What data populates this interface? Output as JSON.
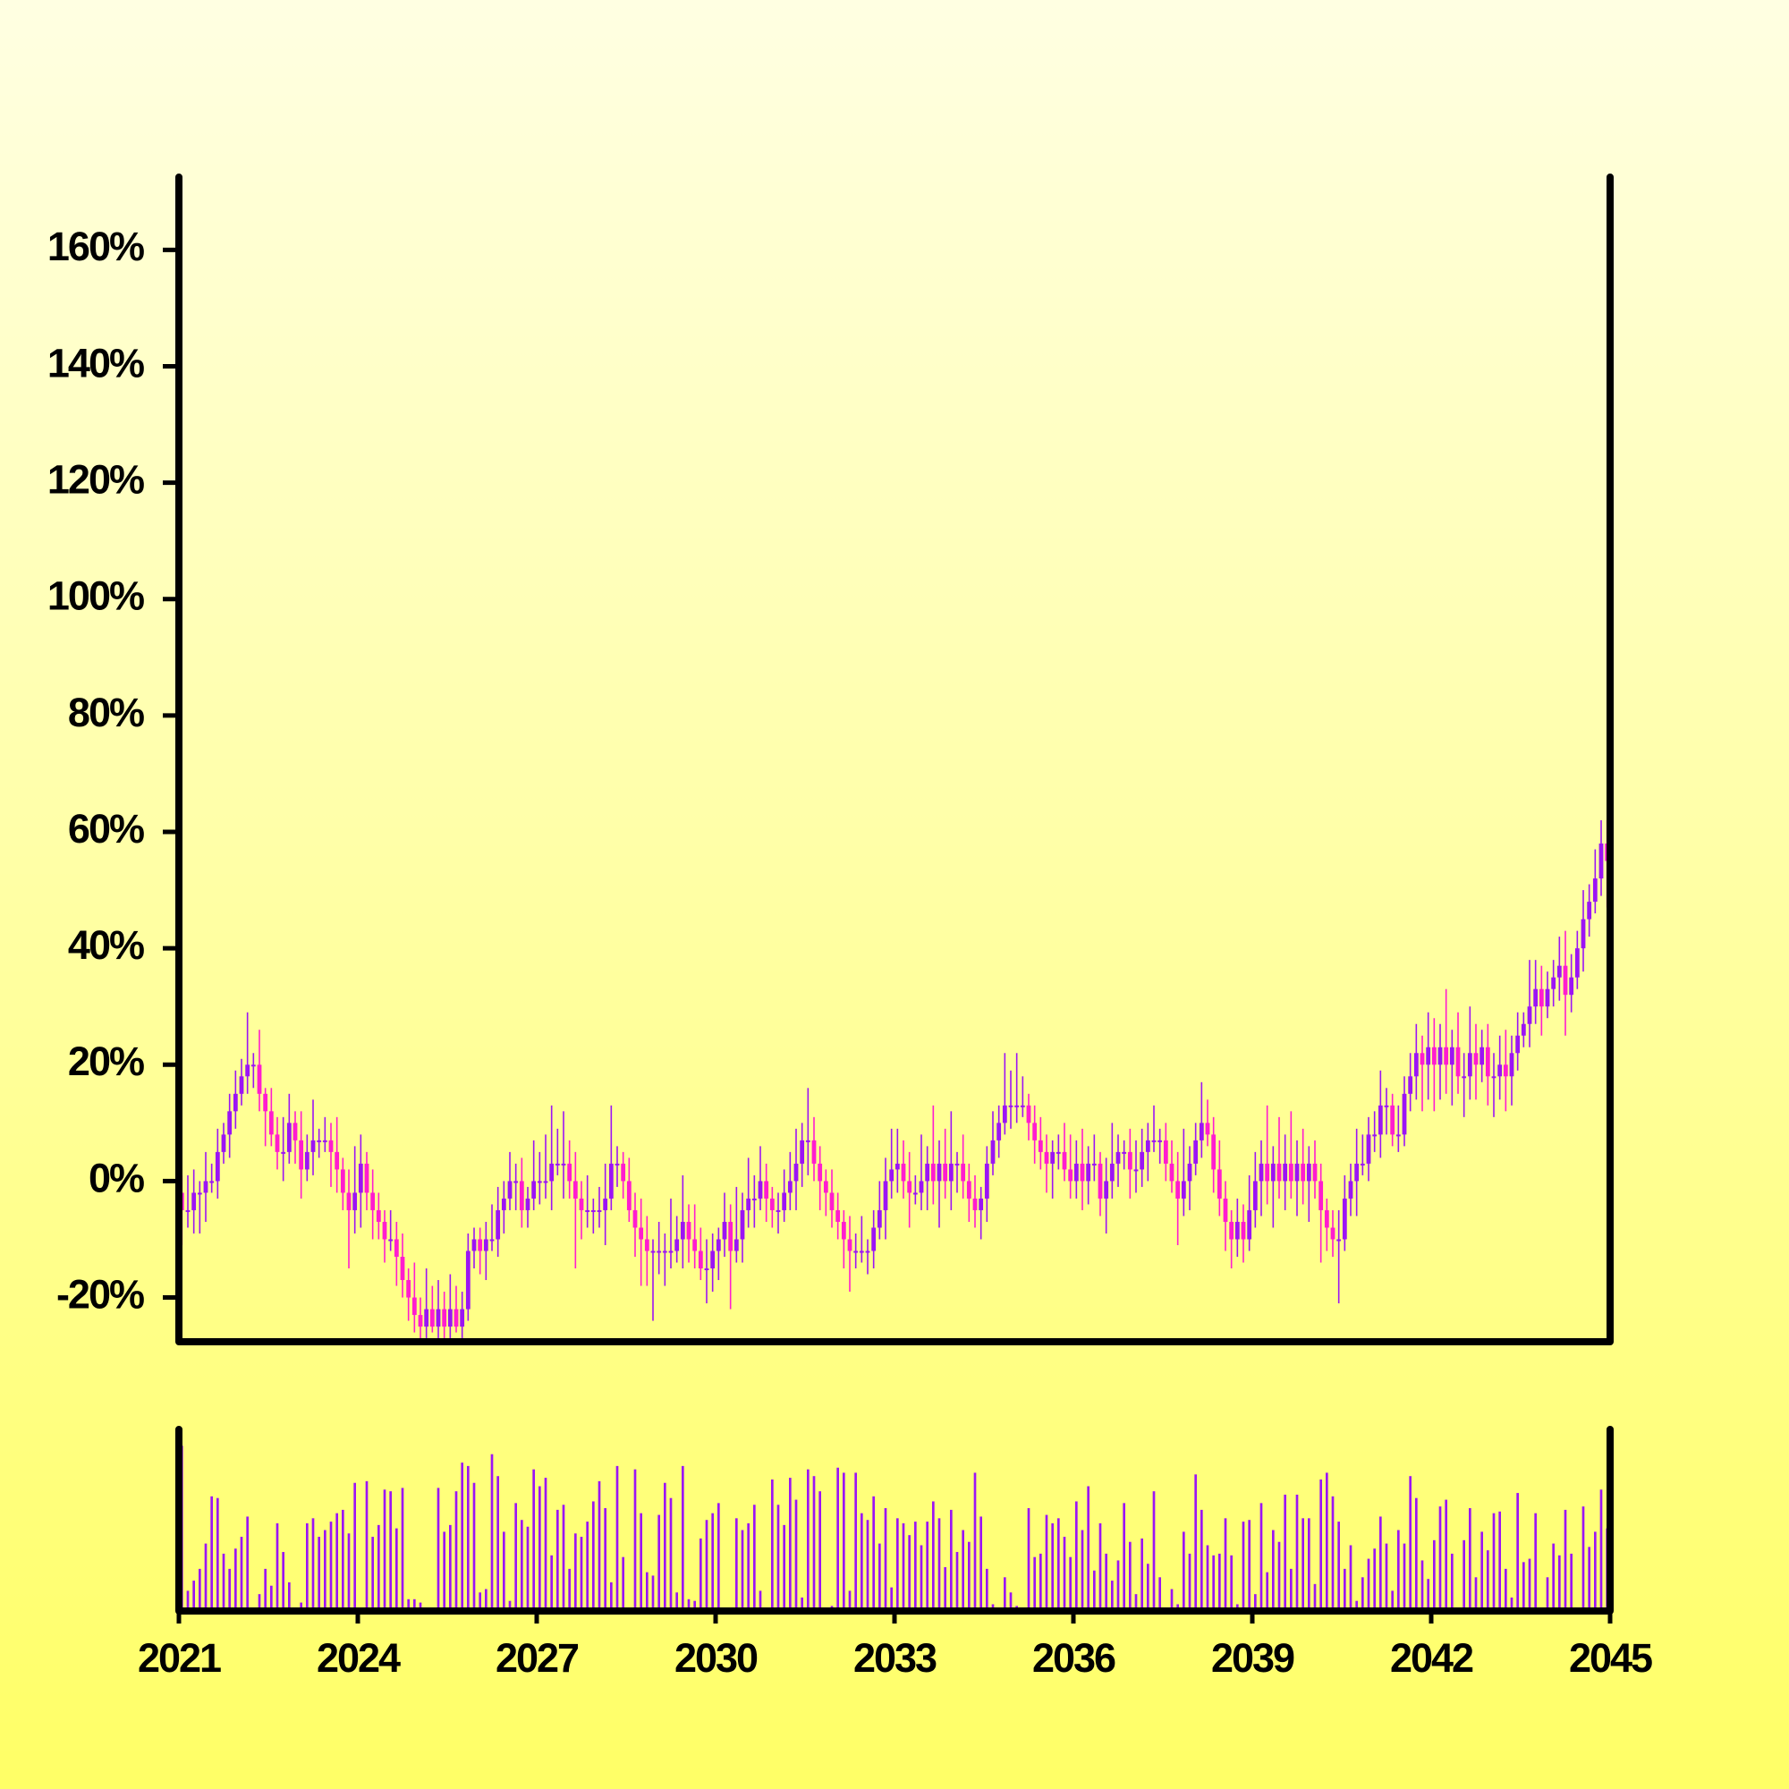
{
  "chart_data": {
    "type": "candlestick",
    "up_color": "#9b14f5",
    "down_color": "#ff1ccf",
    "volume_color": "#9b14f5",
    "xlim": [
      2021,
      2045
    ],
    "xticks": [
      2021,
      2024,
      2027,
      2030,
      2033,
      2036,
      2039,
      2042,
      2045
    ],
    "ylim": [
      -27.6,
      172.5
    ],
    "yticks": [
      {
        "value": -20,
        "label": "-20%"
      },
      {
        "value": 0,
        "label": "0%"
      },
      {
        "value": 20,
        "label": "20%"
      },
      {
        "value": 40,
        "label": "40%"
      },
      {
        "value": 60,
        "label": "60%"
      },
      {
        "value": 80,
        "label": "80%"
      },
      {
        "value": 100,
        "label": "100%"
      },
      {
        "value": 120,
        "label": "120%"
      },
      {
        "value": 140,
        "label": "140%"
      },
      {
        "value": 160,
        "label": "160%"
      }
    ],
    "x": [
      2021.05,
      2021.15,
      2021.25,
      2021.35,
      2021.45,
      2021.55,
      2021.65,
      2021.75,
      2021.85,
      2021.95,
      2022.05,
      2022.15,
      2022.25,
      2022.35,
      2022.45,
      2022.55,
      2022.65,
      2022.75,
      2022.85,
      2022.95,
      2023.05,
      2023.15,
      2023.25,
      2023.35,
      2023.45,
      2023.55,
      2023.65,
      2023.75,
      2023.85,
      2023.95,
      2024.05,
      2024.15,
      2024.25,
      2024.35,
      2024.45,
      2024.55,
      2024.65,
      2024.75,
      2024.85,
      2024.95,
      2025.05,
      2025.15,
      2025.25,
      2025.35,
      2025.45,
      2025.55,
      2025.65,
      2025.75,
      2025.85,
      2025.95,
      2026.05,
      2026.15,
      2026.25,
      2026.35,
      2026.45,
      2026.55,
      2026.65,
      2026.75,
      2026.85,
      2026.95,
      2027.05,
      2027.15,
      2027.25,
      2027.35,
      2027.45,
      2027.55,
      2027.65,
      2027.75,
      2027.85,
      2027.95,
      2028.05,
      2028.15,
      2028.25,
      2028.35,
      2028.45,
      2028.55,
      2028.65,
      2028.75,
      2028.85,
      2028.95,
      2029.05,
      2029.15,
      2029.25,
      2029.35,
      2029.45,
      2029.55,
      2029.65,
      2029.75,
      2029.85,
      2029.95,
      2030.05,
      2030.15,
      2030.25,
      2030.35,
      2030.45,
      2030.55,
      2030.65,
      2030.75,
      2030.85,
      2030.95,
      2031.05,
      2031.15,
      2031.25,
      2031.35,
      2031.45,
      2031.55,
      2031.65,
      2031.75,
      2031.85,
      2031.95,
      2032.05,
      2032.15,
      2032.25,
      2032.35,
      2032.45,
      2032.55,
      2032.65,
      2032.75,
      2032.85,
      2032.95,
      2033.05,
      2033.15,
      2033.25,
      2033.35,
      2033.45,
      2033.55,
      2033.65,
      2033.75,
      2033.85,
      2033.95,
      2034.05,
      2034.15,
      2034.25,
      2034.35,
      2034.45,
      2034.55,
      2034.65,
      2034.75,
      2034.85,
      2034.95,
      2035.05,
      2035.15,
      2035.25,
      2035.35,
      2035.45,
      2035.55,
      2035.65,
      2035.75,
      2035.85,
      2035.95,
      2036.05,
      2036.15,
      2036.25,
      2036.35,
      2036.45,
      2036.55,
      2036.65,
      2036.75,
      2036.85,
      2036.95,
      2037.05,
      2037.15,
      2037.25,
      2037.35,
      2037.45,
      2037.55,
      2037.65,
      2037.75,
      2037.85,
      2037.95,
      2038.05,
      2038.15,
      2038.25,
      2038.35,
      2038.45,
      2038.55,
      2038.65,
      2038.75,
      2038.85,
      2038.95,
      2039.05,
      2039.15,
      2039.25,
      2039.35,
      2039.45,
      2039.55,
      2039.65,
      2039.75,
      2039.85,
      2039.95,
      2040.05,
      2040.15,
      2040.25,
      2040.35,
      2040.45,
      2040.55,
      2040.65,
      2040.75,
      2040.85,
      2040.95,
      2041.05,
      2041.15,
      2041.25,
      2041.35,
      2041.45,
      2041.55,
      2041.65,
      2041.75,
      2041.85,
      2041.95,
      2042.05,
      2042.15,
      2042.25,
      2042.35,
      2042.45,
      2042.55,
      2042.65,
      2042.75,
      2042.85,
      2042.95,
      2043.05,
      2043.15,
      2043.25,
      2043.35,
      2043.45,
      2043.55,
      2043.65,
      2043.75,
      2043.85,
      2043.95,
      2044.05,
      2044.15,
      2044.25,
      2044.35,
      2044.45,
      2044.55,
      2044.65,
      2044.75,
      2044.85,
      2044.95
    ],
    "open": [
      -2,
      -5,
      -5,
      -2,
      -2,
      0,
      0,
      5,
      8,
      12,
      15,
      18,
      20,
      20,
      15,
      12,
      8,
      5,
      5,
      10,
      7,
      2,
      5,
      7,
      7,
      7,
      5,
      2,
      -2,
      -5,
      -2,
      3,
      -2,
      -5,
      -7,
      -10,
      -10,
      -13,
      -17,
      -20,
      -23,
      -25,
      -22,
      -25,
      -22,
      -25,
      -22,
      -25,
      -22,
      -12,
      -10,
      -12,
      -10,
      -10,
      -5,
      -3,
      0,
      0,
      -5,
      -3,
      0,
      0,
      0,
      3,
      3,
      3,
      0,
      -3,
      -5,
      -5,
      -5,
      -5,
      -3,
      3,
      3,
      0,
      -5,
      -8,
      -10,
      -12,
      -12,
      -12,
      -12,
      -12,
      -10,
      -7,
      -10,
      -12,
      -15,
      -15,
      -12,
      -10,
      -7,
      -12,
      -10,
      -5,
      -3,
      -3,
      0,
      -3,
      -5,
      -5,
      -2,
      0,
      3,
      7,
      7,
      3,
      0,
      -2,
      -5,
      -7,
      -10,
      -12,
      -12,
      -12,
      -12,
      -8,
      -5,
      0,
      2,
      3,
      0,
      -2,
      -2,
      0,
      3,
      0,
      3,
      0,
      3,
      3,
      0,
      -3,
      -5,
      -3,
      3,
      7,
      10,
      13,
      13,
      13,
      13,
      10,
      7,
      5,
      3,
      5,
      5,
      2,
      0,
      3,
      0,
      3,
      3,
      -3,
      0,
      3,
      5,
      5,
      2,
      2,
      5,
      7,
      7,
      7,
      3,
      0,
      -3,
      0,
      3,
      7,
      10,
      8,
      2,
      -3,
      -7,
      -10,
      -7,
      -10,
      -5,
      0,
      3,
      0,
      3,
      0,
      3,
      0,
      3,
      0,
      3,
      0,
      -5,
      -8,
      -10,
      -10,
      -3,
      0,
      3,
      3,
      8,
      8,
      13,
      13,
      8,
      8,
      15,
      18,
      22,
      20,
      23,
      20,
      23,
      20,
      23,
      18,
      18,
      22,
      20,
      23,
      18,
      18,
      20,
      18,
      22,
      25,
      27,
      30,
      33,
      30,
      33,
      35,
      37,
      32,
      35,
      40,
      45,
      48,
      52,
      58
    ],
    "high": [
      1,
      1,
      2,
      0,
      5,
      3,
      9,
      10,
      15,
      19,
      21,
      29,
      22,
      26,
      16,
      16,
      11,
      11,
      15,
      12,
      12,
      8,
      14,
      9,
      11,
      10,
      11,
      4,
      2,
      6,
      8,
      5,
      2,
      -2,
      -5,
      -5,
      -7,
      -9,
      -15,
      -14,
      -20,
      -15,
      -18,
      -17,
      -19,
      -16,
      -18,
      -19,
      -9,
      -8,
      -8,
      -7,
      -4,
      -1,
      0,
      5,
      3,
      4,
      -1,
      7,
      5,
      8,
      13,
      9,
      12,
      7,
      5,
      0,
      1,
      -3,
      -1,
      3,
      13,
      6,
      5,
      4,
      -2,
      -3,
      -6,
      -10,
      -7,
      -9,
      -3,
      -6,
      1,
      -4,
      -4,
      -8,
      -10,
      -9,
      -8,
      -2,
      -4,
      -1,
      -2,
      4,
      1,
      6,
      3,
      -1,
      -2,
      2,
      5,
      9,
      10,
      16,
      11,
      6,
      2,
      2,
      -2,
      -5,
      -6,
      -9,
      -6,
      -10,
      -5,
      0,
      4,
      9,
      9,
      7,
      5,
      1,
      8,
      6,
      13,
      7,
      9,
      12,
      5,
      8,
      3,
      1,
      -1,
      6,
      12,
      13,
      22,
      19,
      22,
      18,
      15,
      13,
      11,
      8,
      7,
      8,
      10,
      8,
      7,
      9,
      6,
      8,
      5,
      4,
      10,
      8,
      7,
      9,
      7,
      9,
      10,
      13,
      9,
      10,
      7,
      5,
      9,
      6,
      10,
      17,
      14,
      11,
      7,
      0,
      -5,
      -3,
      -4,
      1,
      5,
      7,
      13,
      6,
      11,
      8,
      12,
      7,
      9,
      6,
      7,
      3,
      -3,
      -5,
      -5,
      1,
      3,
      9,
      8,
      11,
      12,
      19,
      16,
      15,
      13,
      18,
      22,
      27,
      25,
      29,
      28,
      27,
      33,
      26,
      29,
      22,
      30,
      27,
      26,
      27,
      22,
      25,
      26,
      25,
      29,
      29,
      38,
      38,
      37,
      36,
      38,
      42,
      43,
      39,
      43,
      50,
      51,
      57,
      62,
      62
    ],
    "low": [
      -11,
      -8,
      -9,
      -9,
      -7,
      -2,
      -3,
      3,
      4,
      9,
      13,
      15,
      16,
      12,
      6,
      6,
      2,
      0,
      3,
      3,
      -3,
      0,
      1,
      4,
      5,
      -1,
      -2,
      -5,
      -15,
      -9,
      -8,
      -5,
      -10,
      -10,
      -14,
      -12,
      -18,
      -20,
      -24,
      -26,
      -27,
      -28,
      -26,
      -27,
      -28,
      -27,
      -26,
      -27,
      -24,
      -15,
      -16,
      -17,
      -12,
      -13,
      -9,
      -5,
      -5,
      -8,
      -8,
      -5,
      -4,
      -3,
      -5,
      1,
      -3,
      -3,
      -15,
      -10,
      -8,
      -9,
      -8,
      -11,
      -5,
      -1,
      -3,
      -7,
      -13,
      -18,
      -18,
      -24,
      -16,
      -18,
      -15,
      -14,
      -15,
      -14,
      -15,
      -17,
      -21,
      -19,
      -17,
      -13,
      -22,
      -14,
      -14,
      -8,
      -8,
      -5,
      -7,
      -8,
      -9,
      -7,
      -5,
      -5,
      -1,
      1,
      0,
      -5,
      -6,
      -8,
      -10,
      -15,
      -19,
      -15,
      -14,
      -16,
      -15,
      -10,
      -10,
      -3,
      -2,
      -3,
      -8,
      -4,
      -5,
      -5,
      -4,
      -8,
      -3,
      -5,
      -2,
      -3,
      -7,
      -8,
      -10,
      -7,
      1,
      4,
      8,
      9,
      10,
      11,
      7,
      3,
      2,
      -2,
      -3,
      2,
      0,
      -3,
      -3,
      -5,
      -4,
      0,
      -6,
      -9,
      -3,
      -1,
      2,
      -3,
      -2,
      -1,
      0,
      5,
      3,
      0,
      -2,
      -11,
      -6,
      -5,
      1,
      4,
      6,
      -2,
      -6,
      -12,
      -15,
      -13,
      -14,
      -12,
      -8,
      -6,
      -4,
      -8,
      -3,
      -5,
      -3,
      -6,
      -4,
      -7,
      -3,
      -14,
      -12,
      -13,
      -21,
      -12,
      -6,
      -6,
      1,
      0,
      5,
      4,
      8,
      6,
      5,
      6,
      12,
      14,
      12,
      14,
      12,
      14,
      15,
      13,
      15,
      11,
      14,
      14,
      17,
      13,
      11,
      14,
      12,
      13,
      19,
      23,
      23,
      27,
      25,
      28,
      30,
      31,
      25,
      29,
      33,
      36,
      42,
      46,
      49,
      47
    ],
    "close": [
      -5,
      -5,
      -2,
      -2,
      0,
      0,
      5,
      8,
      12,
      15,
      18,
      20,
      20,
      15,
      12,
      8,
      5,
      5,
      10,
      7,
      2,
      5,
      7,
      7,
      7,
      5,
      2,
      -2,
      -5,
      -2,
      3,
      -2,
      -5,
      -7,
      -10,
      -10,
      -13,
      -17,
      -20,
      -23,
      -25,
      -22,
      -25,
      -22,
      -25,
      -22,
      -25,
      -22,
      -12,
      -10,
      -12,
      -10,
      -10,
      -5,
      -3,
      0,
      0,
      -5,
      -3,
      0,
      0,
      0,
      3,
      3,
      3,
      0,
      -3,
      -5,
      -5,
      -5,
      -5,
      -3,
      3,
      3,
      0,
      -5,
      -8,
      -10,
      -12,
      -12,
      -12,
      -12,
      -12,
      -10,
      -7,
      -10,
      -12,
      -15,
      -15,
      -12,
      -10,
      -7,
      -12,
      -10,
      -5,
      -3,
      -3,
      0,
      -3,
      -5,
      -5,
      -2,
      0,
      3,
      7,
      7,
      3,
      0,
      -2,
      -5,
      -7,
      -10,
      -12,
      -12,
      -12,
      -12,
      -8,
      -5,
      0,
      2,
      3,
      0,
      -2,
      -2,
      0,
      3,
      0,
      3,
      0,
      3,
      3,
      0,
      -3,
      -5,
      -3,
      3,
      7,
      10,
      13,
      13,
      13,
      13,
      10,
      7,
      5,
      3,
      5,
      5,
      2,
      0,
      3,
      0,
      3,
      3,
      -3,
      0,
      3,
      5,
      5,
      2,
      2,
      5,
      7,
      7,
      7,
      3,
      0,
      -3,
      0,
      3,
      7,
      10,
      8,
      2,
      -3,
      -7,
      -10,
      -7,
      -10,
      -5,
      0,
      3,
      0,
      3,
      0,
      3,
      0,
      3,
      0,
      3,
      0,
      -5,
      -8,
      -10,
      -10,
      -3,
      0,
      3,
      3,
      8,
      8,
      13,
      13,
      8,
      8,
      15,
      18,
      22,
      20,
      23,
      20,
      23,
      20,
      23,
      18,
      18,
      22,
      20,
      23,
      18,
      18,
      20,
      18,
      22,
      25,
      27,
      30,
      33,
      30,
      33,
      35,
      37,
      32,
      35,
      40,
      45,
      48,
      52,
      58,
      55
    ],
    "volume": [
      98,
      12,
      18,
      25,
      40,
      68,
      67,
      34,
      25,
      37,
      44,
      56,
      1,
      10,
      25,
      15,
      52,
      35,
      17,
      0,
      5,
      52,
      55,
      44,
      48,
      53,
      58,
      60,
      46,
      76,
      0,
      77,
      44,
      51,
      72,
      71,
      49,
      73,
      7,
      7,
      5,
      2,
      2,
      73,
      47,
      51,
      71,
      88,
      86,
      76,
      11,
      13,
      93,
      80,
      47,
      6,
      64,
      54,
      50,
      84,
      74,
      79,
      33,
      60,
      63,
      25,
      46,
      44,
      53,
      65,
      77,
      61,
      17,
      86,
      32,
      0,
      84,
      58,
      23,
      21,
      57,
      76,
      67,
      11,
      86,
      7,
      6,
      43,
      54,
      58,
      64,
      2,
      0,
      55,
      48,
      52,
      63,
      12,
      2,
      78,
      63,
      51,
      79,
      66,
      8,
      84,
      80,
      71,
      2,
      3,
      85,
      82,
      12,
      82,
      58,
      54,
      68,
      40,
      61,
      14,
      55,
      52,
      45,
      53,
      39,
      53,
      65,
      55,
      26,
      60,
      35,
      48,
      41,
      82,
      56,
      25,
      4,
      2,
      20,
      11,
      3,
      0,
      61,
      32,
      34,
      57,
      52,
      55,
      44,
      32,
      65,
      48,
      74,
      24,
      52,
      34,
      18,
      30,
      64,
      41,
      10,
      43,
      28,
      71,
      20,
      1,
      13,
      4,
      47,
      34,
      81,
      60,
      39,
      33,
      34,
      55,
      33,
      4,
      53,
      54,
      10,
      64,
      23,
      48,
      41,
      69,
      25,
      69,
      55,
      55,
      16,
      78,
      82,
      68,
      53,
      25,
      39,
      6,
      20,
      31,
      37,
      56,
      40,
      12,
      48,
      40,
      80,
      67,
      30,
      19,
      42,
      62,
      66,
      34,
      0,
      42,
      61,
      20,
      47,
      36,
      58,
      59,
      25,
      8,
      70,
      29,
      31,
      58,
      0,
      20,
      40,
      33,
      60,
      34,
      0,
      62,
      38,
      47,
      72,
      49
    ]
  }
}
